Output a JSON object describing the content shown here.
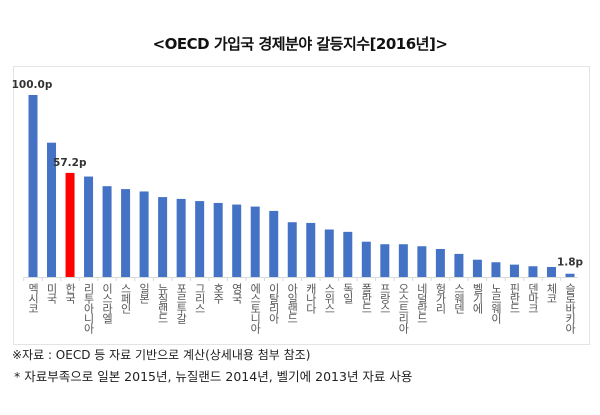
{
  "title": "<OECD 가입국 경제분야 갈등지수[2016년]>",
  "chart_data": {
    "type": "bar",
    "title": "<OECD 가입국 경제분야 갈등지수[2016년]>",
    "xlabel": "",
    "ylabel": "",
    "ylim": [
      0,
      100
    ],
    "grid": false,
    "legend": "none",
    "categories": [
      "멕시코",
      "미국",
      "한국",
      "리투아니아",
      "이스라엘",
      "스페인",
      "일본",
      "뉴질랜드",
      "포르투갈",
      "그리스",
      "호주",
      "영국",
      "에스토니아",
      "이탈리아",
      "아일랜드",
      "캐나다",
      "스위스",
      "독일",
      "폴란드",
      "프랑스",
      "오스트리아",
      "네덜란드",
      "헝가리",
      "스웨덴",
      "벨기에",
      "노르웨이",
      "핀란드",
      "덴마크",
      "체코",
      "슬로바키아"
    ],
    "values": [
      100.0,
      73.8,
      57.2,
      55.2,
      49.9,
      48.3,
      47.0,
      43.9,
      42.9,
      41.7,
      40.7,
      39.8,
      38.7,
      36.3,
      30.1,
      29.7,
      26.1,
      24.8,
      19.4,
      18.0,
      18.0,
      16.9,
      15.4,
      12.7,
      9.5,
      8.1,
      6.8,
      5.9,
      5.5,
      1.8
    ],
    "data_labels": {
      "멕시코": "100.0p",
      "한국": "57.2p",
      "슬로바키아": "1.8p"
    },
    "colors": {
      "default": "#4472C4",
      "highlight": "#FF0000"
    },
    "highlight": "한국"
  },
  "notes": [
    "※자료 : OECD 등 자료 기반으로 계산(상세내용 첨부 참조)",
    "*  자료부족으로 일본 2015년, 뉴질랜드 2014년, 벨기에 2013년 자료 사용"
  ]
}
